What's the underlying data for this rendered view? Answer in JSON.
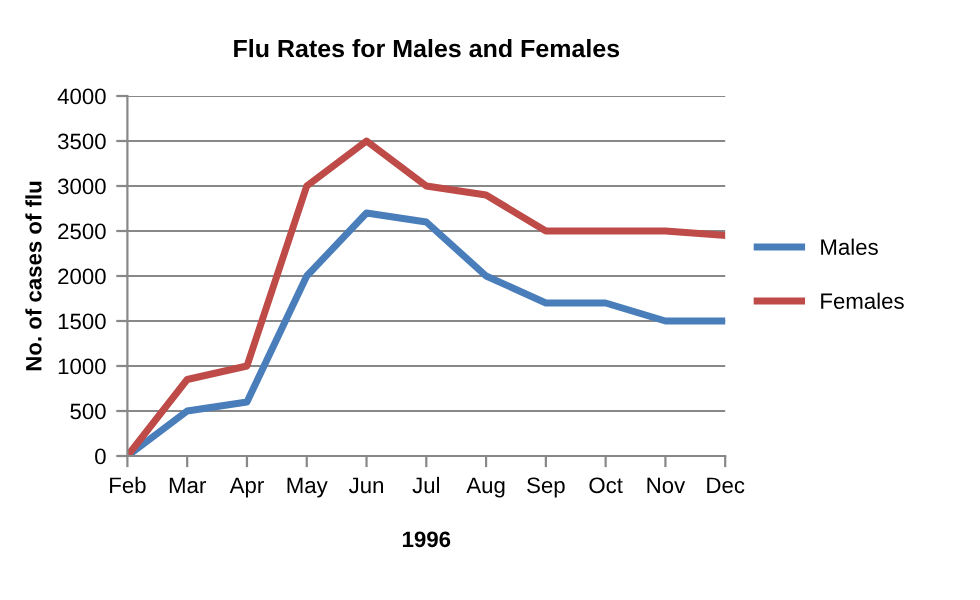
{
  "chart_data": {
    "type": "line",
    "title": "Flu Rates for Males and Females",
    "xlabel": "1996",
    "ylabel": "No. of cases of flu",
    "categories": [
      "Feb",
      "Mar",
      "Apr",
      "May",
      "Jun",
      "Jul",
      "Aug",
      "Sep",
      "Oct",
      "Nov",
      "Dec"
    ],
    "series": [
      {
        "name": "Males",
        "color": "#4a7ebb",
        "values": [
          0,
          500,
          600,
          2000,
          2700,
          2600,
          2000,
          1700,
          1700,
          1500,
          1500
        ]
      },
      {
        "name": "Females",
        "color": "#be4b48",
        "values": [
          0,
          850,
          1000,
          3000,
          3500,
          3000,
          2900,
          2500,
          2500,
          2500,
          2450
        ]
      }
    ],
    "ylim": [
      0,
      4000
    ],
    "yticks": [
      0,
      500,
      1000,
      1500,
      2000,
      2500,
      3000,
      3500,
      4000
    ],
    "grid": "y",
    "legend": "right",
    "marker": "none",
    "line_style": "solid"
  }
}
